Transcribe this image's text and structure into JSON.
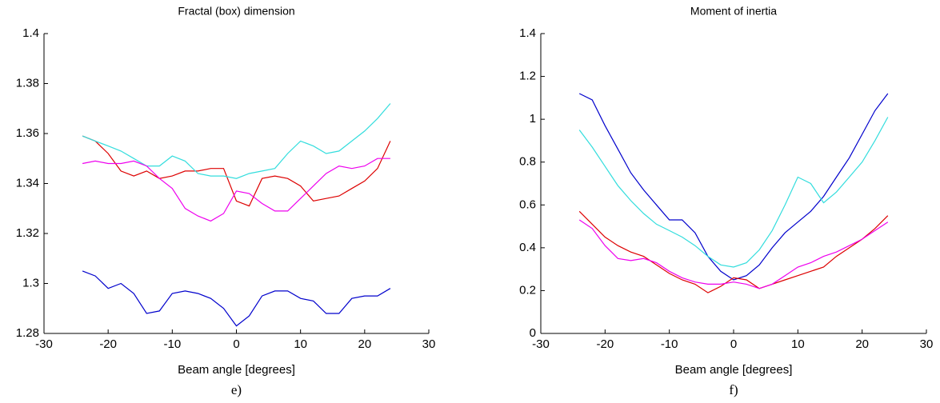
{
  "chart_data": [
    {
      "type": "line",
      "title": "Fractal (box) dimension",
      "xlabel": "Beam angle [degrees]",
      "caption": "e)",
      "x": [
        -24,
        -22,
        -20,
        -18,
        -16,
        -14,
        -12,
        -10,
        -8,
        -6,
        -4,
        -2,
        0,
        2,
        4,
        6,
        8,
        10,
        12,
        14,
        16,
        18,
        20,
        22,
        24
      ],
      "series": [
        {
          "color": "#0000cc",
          "values": [
            1.305,
            1.303,
            1.298,
            1.3,
            1.296,
            1.288,
            1.289,
            1.296,
            1.297,
            1.296,
            1.294,
            1.29,
            1.283,
            1.287,
            1.295,
            1.297,
            1.297,
            1.294,
            1.293,
            1.288,
            1.288,
            1.294,
            1.295,
            1.295,
            1.298
          ]
        },
        {
          "color": "#dd0000",
          "values": [
            1.359,
            1.357,
            1.352,
            1.345,
            1.343,
            1.345,
            1.342,
            1.343,
            1.345,
            1.345,
            1.346,
            1.346,
            1.333,
            1.331,
            1.342,
            1.343,
            1.342,
            1.339,
            1.333,
            1.334,
            1.335,
            1.338,
            1.341,
            1.346,
            1.357
          ]
        },
        {
          "color": "#33dddd",
          "values": [
            1.359,
            1.357,
            1.355,
            1.353,
            1.35,
            1.347,
            1.347,
            1.351,
            1.349,
            1.344,
            1.343,
            1.343,
            1.342,
            1.344,
            1.345,
            1.346,
            1.352,
            1.357,
            1.355,
            1.352,
            1.353,
            1.357,
            1.361,
            1.366,
            1.372
          ]
        },
        {
          "color": "#ee00ee",
          "values": [
            1.348,
            1.349,
            1.348,
            1.348,
            1.349,
            1.347,
            1.342,
            1.338,
            1.33,
            1.327,
            1.325,
            1.328,
            1.337,
            1.336,
            1.332,
            1.329,
            1.329,
            1.334,
            1.339,
            1.344,
            1.347,
            1.346,
            1.347,
            1.35,
            1.35
          ]
        }
      ],
      "xlim": [
        -30,
        30
      ],
      "ylim": [
        1.28,
        1.4
      ],
      "xticks": [
        -30,
        -20,
        -10,
        0,
        10,
        20,
        30
      ],
      "yticks": [
        1.28,
        1.3,
        1.32,
        1.34,
        1.36,
        1.38,
        1.4
      ]
    },
    {
      "type": "line",
      "title": "Moment of inertia",
      "xlabel": "Beam angle [degrees]",
      "caption": "f)",
      "x": [
        -24,
        -22,
        -20,
        -18,
        -16,
        -14,
        -12,
        -10,
        -8,
        -6,
        -4,
        -2,
        0,
        2,
        4,
        6,
        8,
        10,
        12,
        14,
        16,
        18,
        20,
        22,
        24
      ],
      "series": [
        {
          "color": "#0000cc",
          "values": [
            1.12,
            1.09,
            0.97,
            0.86,
            0.75,
            0.67,
            0.6,
            0.53,
            0.53,
            0.47,
            0.36,
            0.29,
            0.25,
            0.27,
            0.32,
            0.4,
            0.47,
            0.52,
            0.57,
            0.64,
            0.73,
            0.82,
            0.93,
            1.04,
            1.12
          ]
        },
        {
          "color": "#33dddd",
          "values": [
            0.95,
            0.87,
            0.78,
            0.69,
            0.62,
            0.56,
            0.51,
            0.48,
            0.45,
            0.41,
            0.36,
            0.32,
            0.31,
            0.33,
            0.39,
            0.48,
            0.6,
            0.73,
            0.7,
            0.61,
            0.66,
            0.73,
            0.8,
            0.9,
            1.01
          ]
        },
        {
          "color": "#dd0000",
          "values": [
            0.57,
            0.51,
            0.45,
            0.41,
            0.38,
            0.36,
            0.32,
            0.28,
            0.25,
            0.23,
            0.19,
            0.22,
            0.26,
            0.25,
            0.21,
            0.23,
            0.25,
            0.27,
            0.29,
            0.31,
            0.36,
            0.4,
            0.44,
            0.49,
            0.55
          ]
        },
        {
          "color": "#ee00ee",
          "values": [
            0.53,
            0.49,
            0.41,
            0.35,
            0.34,
            0.35,
            0.33,
            0.29,
            0.26,
            0.24,
            0.23,
            0.23,
            0.24,
            0.23,
            0.21,
            0.23,
            0.27,
            0.31,
            0.33,
            0.36,
            0.38,
            0.41,
            0.44,
            0.48,
            0.52
          ]
        }
      ],
      "xlim": [
        -30,
        30
      ],
      "ylim": [
        0,
        1.4
      ],
      "xticks": [
        -30,
        -20,
        -10,
        0,
        10,
        20,
        30
      ],
      "yticks": [
        0,
        0.2,
        0.4,
        0.6,
        0.8,
        1,
        1.2,
        1.4
      ]
    }
  ]
}
